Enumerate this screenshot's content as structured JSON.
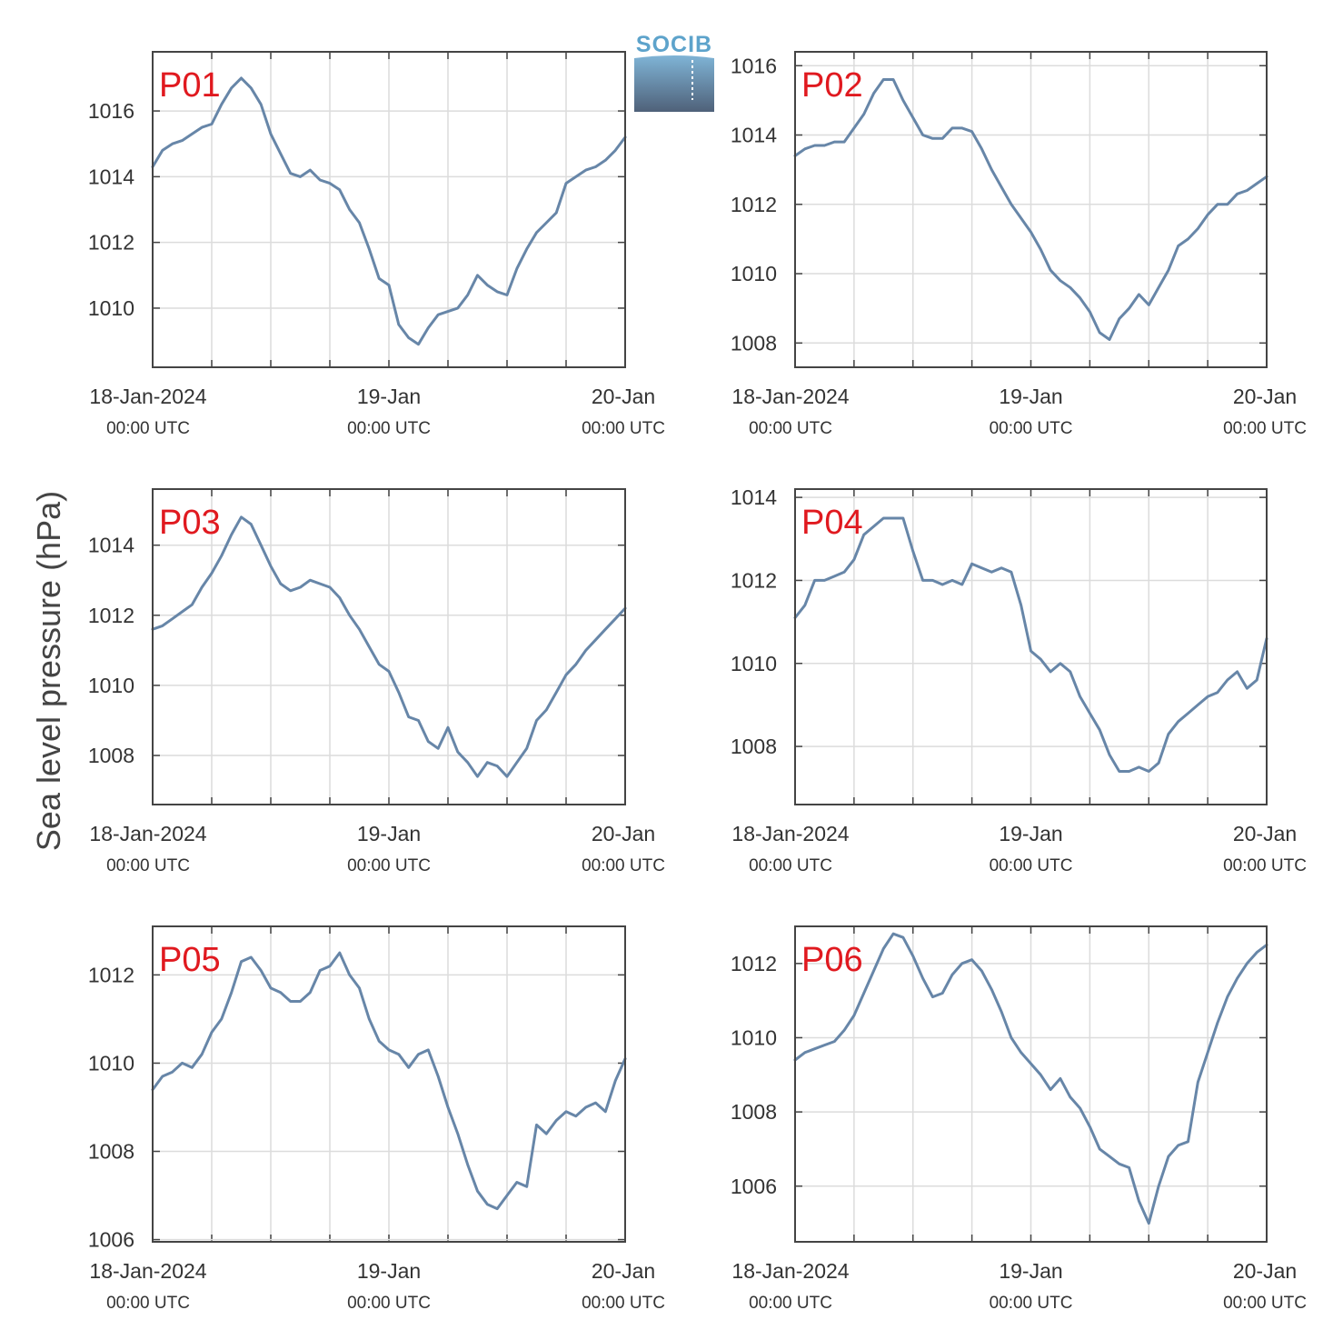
{
  "figure": {
    "ylabel": "Sea level pressure (hPa)",
    "logo_text": "SOCIB",
    "colors": {
      "line": "#6786a8",
      "panel_label": "#e0191f",
      "grid": "#dcdcdc",
      "frame": "#444444",
      "text": "#333333",
      "logo_text": "#5da3cb",
      "logo_top": "#7fb4d6",
      "logo_bottom": "#4f6179"
    }
  },
  "chart_data": [
    {
      "type": "line",
      "label": "P01",
      "x_tick_labels": [
        {
          "date": "18-Jan-2024",
          "time": "00:00 UTC"
        },
        {
          "date": "19-Jan",
          "time": "00:00 UTC"
        },
        {
          "date": "20-Jan",
          "time": "00:00 UTC"
        }
      ],
      "xlim": [
        0,
        48
      ],
      "x_gridlines": [
        6,
        12,
        18,
        24,
        30,
        36,
        42
      ],
      "ylim": [
        1008.2,
        1017.8
      ],
      "yticks": [
        1010,
        1012,
        1014,
        1016
      ],
      "x": [
        0,
        1,
        2,
        3,
        4,
        5,
        6,
        7,
        8,
        9,
        10,
        11,
        12,
        13,
        14,
        15,
        16,
        17,
        18,
        19,
        20,
        21,
        22,
        23,
        24,
        25,
        26,
        27,
        28,
        29,
        30,
        31,
        32,
        33,
        34,
        35,
        36,
        37,
        38,
        39,
        40,
        41,
        42,
        43,
        44,
        45,
        46,
        47,
        48
      ],
      "values": [
        1014.3,
        1014.8,
        1015.0,
        1015.1,
        1015.3,
        1015.5,
        1015.6,
        1016.2,
        1016.7,
        1017.0,
        1016.7,
        1016.2,
        1015.3,
        1014.7,
        1014.1,
        1014.0,
        1014.2,
        1013.9,
        1013.8,
        1013.6,
        1013.0,
        1012.6,
        1011.8,
        1010.9,
        1010.7,
        1009.5,
        1009.1,
        1008.9,
        1009.4,
        1009.8,
        1009.9,
        1010.0,
        1010.4,
        1011.0,
        1010.7,
        1010.5,
        1010.4,
        1011.2,
        1011.8,
        1012.3,
        1012.6,
        1012.9,
        1013.8,
        1014.0,
        1014.2,
        1014.3,
        1014.5,
        1014.8,
        1015.2
      ]
    },
    {
      "type": "line",
      "label": "P02",
      "x_tick_labels": [
        {
          "date": "18-Jan-2024",
          "time": "00:00 UTC"
        },
        {
          "date": "19-Jan",
          "time": "00:00 UTC"
        },
        {
          "date": "20-Jan",
          "time": "00:00 UTC"
        }
      ],
      "xlim": [
        0,
        48
      ],
      "x_gridlines": [
        6,
        12,
        18,
        24,
        30,
        36,
        42
      ],
      "ylim": [
        1007.3,
        1016.4
      ],
      "yticks": [
        1008,
        1010,
        1012,
        1014,
        1016
      ],
      "x": [
        0,
        1,
        2,
        3,
        4,
        5,
        6,
        7,
        8,
        9,
        10,
        11,
        12,
        13,
        14,
        15,
        16,
        17,
        18,
        19,
        20,
        21,
        22,
        23,
        24,
        25,
        26,
        27,
        28,
        29,
        30,
        31,
        32,
        33,
        34,
        35,
        36,
        37,
        38,
        39,
        40,
        41,
        42,
        43,
        44,
        45,
        46,
        47,
        48
      ],
      "values": [
        1013.4,
        1013.6,
        1013.7,
        1013.7,
        1013.8,
        1013.8,
        1014.2,
        1014.6,
        1015.2,
        1015.6,
        1015.6,
        1015.0,
        1014.5,
        1014.0,
        1013.9,
        1013.9,
        1014.2,
        1014.2,
        1014.1,
        1013.6,
        1013.0,
        1012.5,
        1012.0,
        1011.6,
        1011.2,
        1010.7,
        1010.1,
        1009.8,
        1009.6,
        1009.3,
        1008.9,
        1008.3,
        1008.1,
        1008.7,
        1009.0,
        1009.4,
        1009.1,
        1009.6,
        1010.1,
        1010.8,
        1011.0,
        1011.3,
        1011.7,
        1012.0,
        1012.0,
        1012.3,
        1012.4,
        1012.6,
        1012.8
      ]
    },
    {
      "type": "line",
      "label": "P03",
      "x_tick_labels": [
        {
          "date": "18-Jan-2024",
          "time": "00:00 UTC"
        },
        {
          "date": "19-Jan",
          "time": "00:00 UTC"
        },
        {
          "date": "20-Jan",
          "time": "00:00 UTC"
        }
      ],
      "xlim": [
        0,
        48
      ],
      "x_gridlines": [
        6,
        12,
        18,
        24,
        30,
        36,
        42
      ],
      "ylim": [
        1006.6,
        1015.6
      ],
      "yticks": [
        1008,
        1010,
        1012,
        1014
      ],
      "x": [
        0,
        1,
        2,
        3,
        4,
        5,
        6,
        7,
        8,
        9,
        10,
        11,
        12,
        13,
        14,
        15,
        16,
        17,
        18,
        19,
        20,
        21,
        22,
        23,
        24,
        25,
        26,
        27,
        28,
        29,
        30,
        31,
        32,
        33,
        34,
        35,
        36,
        37,
        38,
        39,
        40,
        41,
        42,
        43,
        44,
        45,
        46,
        47,
        48
      ],
      "values": [
        1011.6,
        1011.7,
        1011.9,
        1012.1,
        1012.3,
        1012.8,
        1013.2,
        1013.7,
        1014.3,
        1014.8,
        1014.6,
        1014.0,
        1013.4,
        1012.9,
        1012.7,
        1012.8,
        1013.0,
        1012.9,
        1012.8,
        1012.5,
        1012.0,
        1011.6,
        1011.1,
        1010.6,
        1010.4,
        1009.8,
        1009.1,
        1009.0,
        1008.4,
        1008.2,
        1008.8,
        1008.1,
        1007.8,
        1007.4,
        1007.8,
        1007.7,
        1007.4,
        1007.8,
        1008.2,
        1009.0,
        1009.3,
        1009.8,
        1010.3,
        1010.6,
        1011.0,
        1011.3,
        1011.6,
        1011.9,
        1012.2
      ]
    },
    {
      "type": "line",
      "label": "P04",
      "x_tick_labels": [
        {
          "date": "18-Jan-2024",
          "time": "00:00 UTC"
        },
        {
          "date": "19-Jan",
          "time": "00:00 UTC"
        },
        {
          "date": "20-Jan",
          "time": "00:00 UTC"
        }
      ],
      "xlim": [
        0,
        48
      ],
      "x_gridlines": [
        6,
        12,
        18,
        24,
        30,
        36,
        42
      ],
      "ylim": [
        1006.6,
        1014.2
      ],
      "yticks": [
        1008,
        1010,
        1012,
        1014
      ],
      "x": [
        0,
        1,
        2,
        3,
        4,
        5,
        6,
        7,
        8,
        9,
        10,
        11,
        12,
        13,
        14,
        15,
        16,
        17,
        18,
        19,
        20,
        21,
        22,
        23,
        24,
        25,
        26,
        27,
        28,
        29,
        30,
        31,
        32,
        33,
        34,
        35,
        36,
        37,
        38,
        39,
        40,
        41,
        42,
        43,
        44,
        45,
        46,
        47,
        48
      ],
      "values": [
        1011.1,
        1011.4,
        1012.0,
        1012.0,
        1012.1,
        1012.2,
        1012.5,
        1013.1,
        1013.3,
        1013.5,
        1013.5,
        1013.5,
        1012.7,
        1012.0,
        1012.0,
        1011.9,
        1012.0,
        1011.9,
        1012.4,
        1012.3,
        1012.2,
        1012.3,
        1012.2,
        1011.4,
        1010.3,
        1010.1,
        1009.8,
        1010.0,
        1009.8,
        1009.2,
        1008.8,
        1008.4,
        1007.8,
        1007.4,
        1007.4,
        1007.5,
        1007.4,
        1007.6,
        1008.3,
        1008.6,
        1008.8,
        1009.0,
        1009.2,
        1009.3,
        1009.6,
        1009.8,
        1009.4,
        1009.6,
        1010.6
      ]
    },
    {
      "type": "line",
      "label": "P05",
      "x_tick_labels": [
        {
          "date": "18-Jan-2024",
          "time": "00:00 UTC"
        },
        {
          "date": "19-Jan",
          "time": "00:00 UTC"
        },
        {
          "date": "20-Jan",
          "time": "00:00 UTC"
        }
      ],
      "xlim": [
        0,
        48
      ],
      "x_gridlines": [
        6,
        12,
        18,
        24,
        30,
        36,
        42
      ],
      "ylim": [
        1005.95,
        1013.1
      ],
      "yticks": [
        1006,
        1008,
        1010,
        1012
      ],
      "x": [
        0,
        1,
        2,
        3,
        4,
        5,
        6,
        7,
        8,
        9,
        10,
        11,
        12,
        13,
        14,
        15,
        16,
        17,
        18,
        19,
        20,
        21,
        22,
        23,
        24,
        25,
        26,
        27,
        28,
        29,
        30,
        31,
        32,
        33,
        34,
        35,
        36,
        37,
        38,
        39,
        40,
        41,
        42,
        43,
        44,
        45,
        46,
        47,
        48
      ],
      "values": [
        1009.4,
        1009.7,
        1009.8,
        1010.0,
        1009.9,
        1010.2,
        1010.7,
        1011.0,
        1011.6,
        1012.3,
        1012.4,
        1012.1,
        1011.7,
        1011.6,
        1011.4,
        1011.4,
        1011.6,
        1012.1,
        1012.2,
        1012.5,
        1012.0,
        1011.7,
        1011.0,
        1010.5,
        1010.3,
        1010.2,
        1009.9,
        1010.2,
        1010.3,
        1009.7,
        1009.0,
        1008.4,
        1007.7,
        1007.1,
        1006.8,
        1006.7,
        1007.0,
        1007.3,
        1007.2,
        1008.6,
        1008.4,
        1008.7,
        1008.9,
        1008.8,
        1009.0,
        1009.1,
        1008.9,
        1009.6,
        1010.1
      ]
    },
    {
      "type": "line",
      "label": "P06",
      "x_tick_labels": [
        {
          "date": "18-Jan-2024",
          "time": "00:00 UTC"
        },
        {
          "date": "19-Jan",
          "time": "00:00 UTC"
        },
        {
          "date": "20-Jan",
          "time": "00:00 UTC"
        }
      ],
      "xlim": [
        0,
        48
      ],
      "x_gridlines": [
        6,
        12,
        18,
        24,
        30,
        36,
        42
      ],
      "ylim": [
        1004.5,
        1013.0
      ],
      "yticks": [
        1006,
        1008,
        1010,
        1012
      ],
      "x": [
        0,
        1,
        2,
        3,
        4,
        5,
        6,
        7,
        8,
        9,
        10,
        11,
        12,
        13,
        14,
        15,
        16,
        17,
        18,
        19,
        20,
        21,
        22,
        23,
        24,
        25,
        26,
        27,
        28,
        29,
        30,
        31,
        32,
        33,
        34,
        35,
        36,
        37,
        38,
        39,
        40,
        41,
        42,
        43,
        44,
        45,
        46,
        47,
        48
      ],
      "values": [
        1009.4,
        1009.6,
        1009.7,
        1009.8,
        1009.9,
        1010.2,
        1010.6,
        1011.2,
        1011.8,
        1012.4,
        1012.8,
        1012.7,
        1012.2,
        1011.6,
        1011.1,
        1011.2,
        1011.7,
        1012.0,
        1012.1,
        1011.8,
        1011.3,
        1010.7,
        1010.0,
        1009.6,
        1009.3,
        1009.0,
        1008.6,
        1008.9,
        1008.4,
        1008.1,
        1007.6,
        1007.0,
        1006.8,
        1006.6,
        1006.5,
        1005.6,
        1005.0,
        1006.0,
        1006.8,
        1007.1,
        1007.2,
        1008.8,
        1009.6,
        1010.4,
        1011.1,
        1011.6,
        1012.0,
        1012.3,
        1012.5
      ]
    }
  ]
}
